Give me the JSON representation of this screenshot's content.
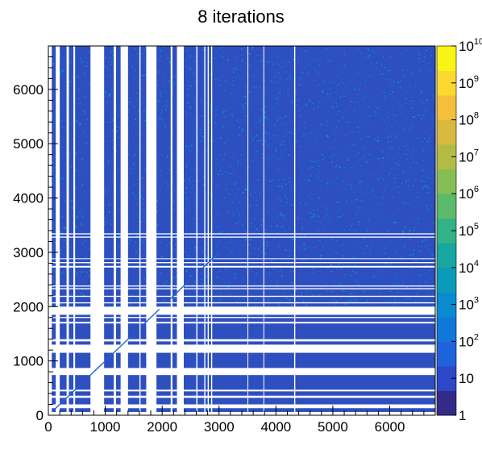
{
  "chart_data": {
    "type": "heatmap",
    "title": "8 iterations",
    "xlabel": "",
    "ylabel": "",
    "xlim": [
      0,
      6800
    ],
    "ylim": [
      0,
      6800
    ],
    "x_ticks": [
      0,
      1000,
      2000,
      3000,
      4000,
      5000,
      6000
    ],
    "x_tick_labels": [
      "0",
      "1000",
      "2000",
      "3000",
      "4000",
      "5000",
      "6000"
    ],
    "y_ticks": [
      0,
      1000,
      2000,
      3000,
      4000,
      5000,
      6000
    ],
    "y_tick_labels": [
      "0",
      "1000",
      "2000",
      "3000",
      "4000",
      "5000",
      "6000"
    ],
    "z_scale": "log",
    "zlim": [
      1,
      10000000000
    ],
    "colorbar_labels": [
      {
        "value": 1,
        "base": "1",
        "exp": ""
      },
      {
        "value": 10,
        "base": "10",
        "exp": ""
      },
      {
        "value": 100,
        "base": "10",
        "exp": "2"
      },
      {
        "value": 1000,
        "base": "10",
        "exp": "3"
      },
      {
        "value": 10000,
        "base": "10",
        "exp": "4"
      },
      {
        "value": 100000,
        "base": "10",
        "exp": "5"
      },
      {
        "value": 1000000,
        "base": "10",
        "exp": "6"
      },
      {
        "value": 10000000,
        "base": "10",
        "exp": "7"
      },
      {
        "value": 100000000,
        "base": "10",
        "exp": "8"
      },
      {
        "value": 1000000000,
        "base": "10",
        "exp": "9"
      },
      {
        "value": 10000000000,
        "base": "10",
        "exp": "10"
      }
    ],
    "palette": [
      "#352a87",
      "#2c48c8",
      "#1f63dc",
      "#1078d9",
      "#0b8bcf",
      "#0a9bbb",
      "#18a6a3",
      "#33b187",
      "#5bba6b",
      "#86be55",
      "#b2bc45",
      "#d7b93e",
      "#f4bf3a",
      "#fcd831",
      "#f9f316"
    ],
    "background_color": "#2d4fbf",
    "empty_rows": [
      [
        0,
        60
      ],
      [
        130,
        200
      ],
      [
        320,
        360
      ],
      [
        440,
        470
      ],
      [
        740,
        870
      ],
      [
        1150,
        1300
      ],
      [
        1360,
        1400
      ],
      [
        1690,
        1720
      ],
      [
        1790,
        1810
      ],
      [
        1850,
        2000
      ],
      [
        2060,
        2080
      ],
      [
        2180,
        2200
      ],
      [
        2320,
        2340
      ],
      [
        2370,
        2390
      ],
      [
        2720,
        2750
      ],
      [
        2800,
        2820
      ],
      [
        2880,
        2890
      ],
      [
        3270,
        3290
      ],
      [
        3330,
        3350
      ]
    ],
    "empty_cols": [
      [
        0,
        60
      ],
      [
        130,
        200
      ],
      [
        320,
        360
      ],
      [
        440,
        470
      ],
      [
        740,
        980
      ],
      [
        1150,
        1190
      ],
      [
        1270,
        1400
      ],
      [
        1600,
        1620
      ],
      [
        1720,
        1900
      ],
      [
        2150,
        2180
      ],
      [
        2260,
        2380
      ],
      [
        2600,
        2620
      ],
      [
        2740,
        2760
      ],
      [
        2800,
        2820
      ],
      [
        2860,
        2880
      ],
      [
        3500,
        3510
      ],
      [
        3780,
        3790
      ],
      [
        4320,
        4340
      ]
    ],
    "diagonal_segments": [
      [
        [
          120,
          120
        ],
        [
          600,
          600
        ]
      ],
      [
        [
          700,
          700
        ],
        [
          1450,
          1450
        ]
      ],
      [
        [
          1650,
          1650
        ],
        [
          1950,
          1950
        ]
      ],
      [
        [
          2150,
          2150
        ],
        [
          2450,
          2450
        ]
      ],
      [
        [
          2700,
          2700
        ],
        [
          3000,
          3000
        ]
      ]
    ]
  }
}
